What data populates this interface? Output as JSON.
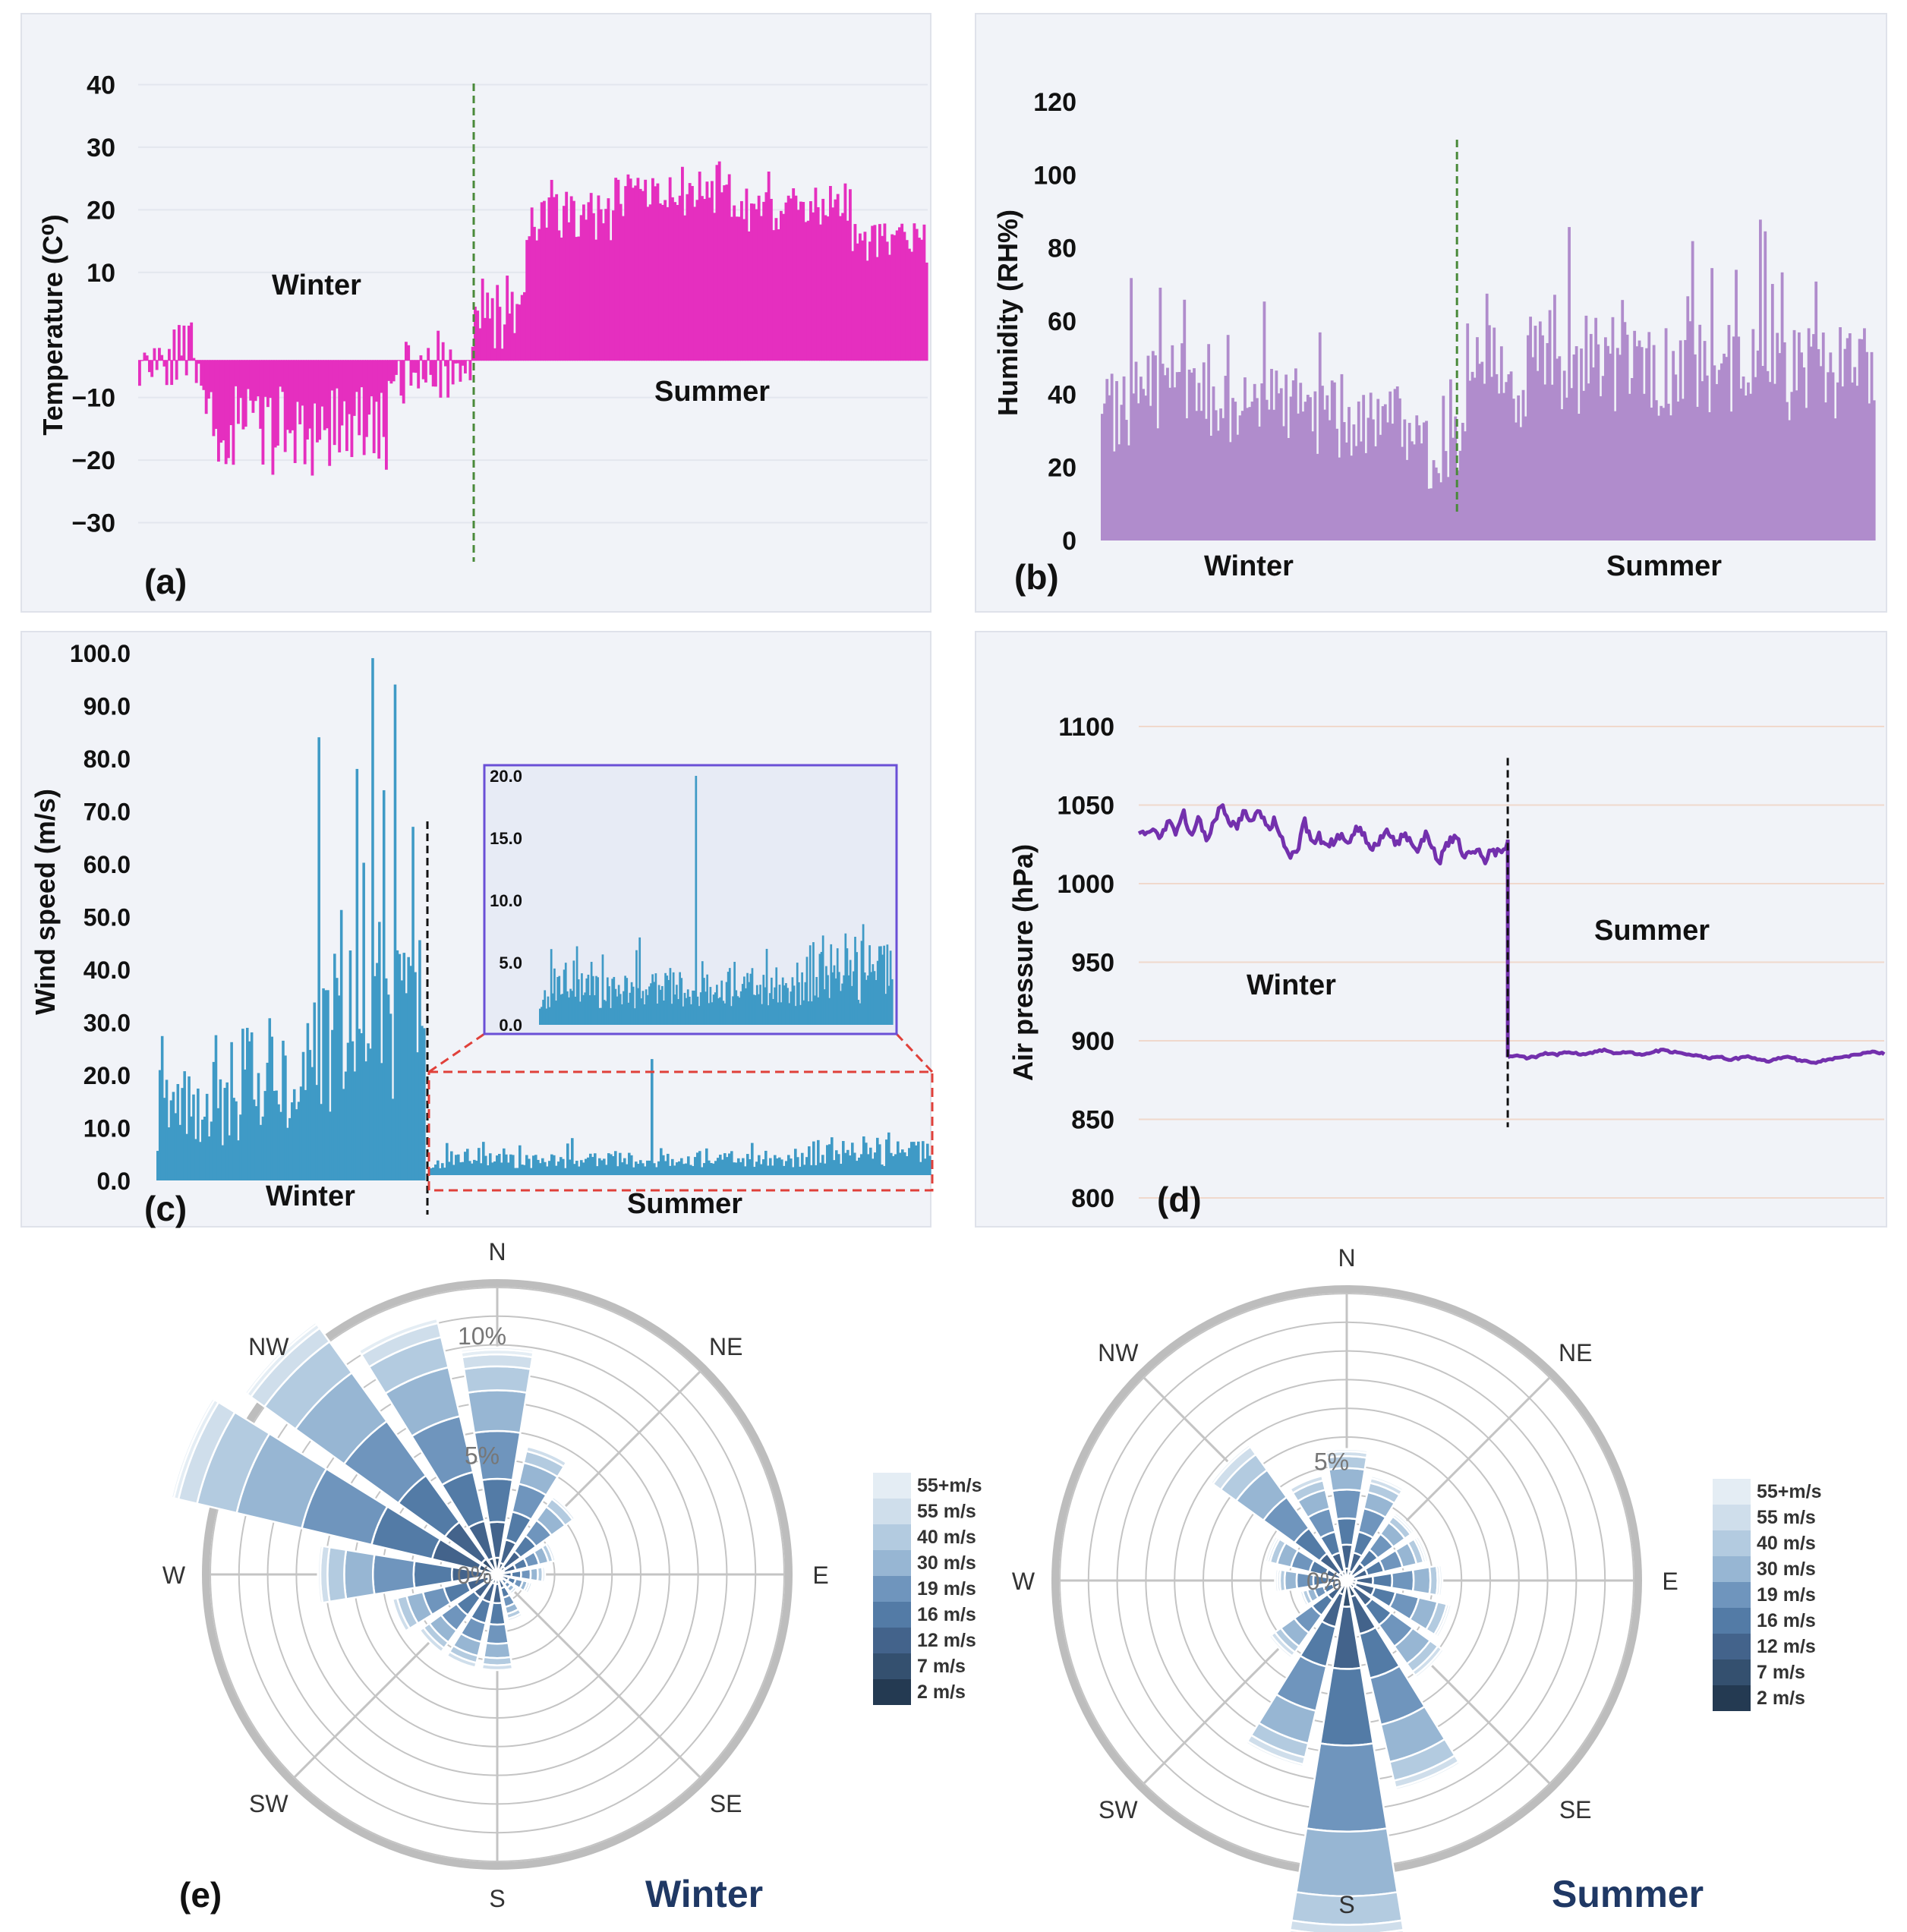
{
  "colors": {
    "panel_bg": "#f1f3f8",
    "panel_border": "#dfe2ea",
    "temperature": "#e52fbf",
    "humidity": "#b08ccc",
    "wind": "#3f9ac6",
    "pressure": "#7330ad",
    "divider_green": "#4a8a3a",
    "divider_black": "#111111",
    "inset_border": "#6a4fd6",
    "zoom_red": "#e0403a",
    "rose_grid": "#c4c4c4",
    "title_navy": "#1f3864",
    "legend": [
      "#e4edf4",
      "#cfdeeb",
      "#b3cbe0",
      "#97b6d3",
      "#6f95bd",
      "#537ba6",
      "#43638b",
      "#34506f",
      "#243a52"
    ]
  },
  "chart_data": [
    {
      "id": "a",
      "type": "bar",
      "panel_label": "(a)",
      "ylabel": "Temperature (C⁰)",
      "yticks": [
        "40",
        "30",
        "20",
        "10",
        "−10",
        "−20",
        "−30"
      ],
      "ytick_values": [
        40,
        30,
        20,
        10,
        -10,
        -20,
        -30
      ],
      "ylim": [
        -32,
        42
      ],
      "season_labels": [
        "Winter",
        "Summer"
      ],
      "segments": [
        {
          "from": 0.0,
          "to": 0.08,
          "base": -3,
          "amp": 10,
          "spike": 6
        },
        {
          "from": 0.08,
          "to": 0.22,
          "base": -15,
          "amp": 14,
          "spike": 7
        },
        {
          "from": 0.22,
          "to": 0.32,
          "base": -14,
          "amp": 14,
          "spike": 6
        },
        {
          "from": 0.32,
          "to": 0.42,
          "base": -6,
          "amp": 10,
          "spike": 6
        },
        {
          "from": 0.42,
          "to": 0.49,
          "base": 3,
          "amp": 12,
          "spike": 5
        },
        {
          "from": 0.49,
          "to": 0.6,
          "base": 19,
          "amp": 8,
          "spike": 6
        },
        {
          "from": 0.6,
          "to": 0.75,
          "base": 22,
          "amp": 7,
          "spike": 9
        },
        {
          "from": 0.75,
          "to": 0.9,
          "base": 20,
          "amp": 7,
          "spike": 6
        },
        {
          "from": 0.9,
          "to": 1.0,
          "base": 15,
          "amp": 8,
          "spike": 5
        }
      ],
      "n_bars": 320,
      "divider_at": 0.425
    },
    {
      "id": "b",
      "type": "bar",
      "panel_label": "(b)",
      "ylabel": "Humidity (RH%)",
      "yticks": [
        "120",
        "100",
        "80",
        "60",
        "40",
        "20",
        "0"
      ],
      "ytick_values": [
        120,
        100,
        80,
        60,
        40,
        20,
        0
      ],
      "ylim": [
        0,
        125
      ],
      "season_labels": [
        "Winter",
        "Summer"
      ],
      "segments": [
        {
          "from": 0.0,
          "to": 0.1,
          "base": 30,
          "amp": 30,
          "spike": 18
        },
        {
          "from": 0.1,
          "to": 0.25,
          "base": 32,
          "amp": 22,
          "spike": 14
        },
        {
          "from": 0.25,
          "to": 0.4,
          "base": 28,
          "amp": 22,
          "spike": 12
        },
        {
          "from": 0.4,
          "to": 0.47,
          "base": 20,
          "amp": 20,
          "spike": 10
        },
        {
          "from": 0.47,
          "to": 0.6,
          "base": 40,
          "amp": 30,
          "spike": 20
        },
        {
          "from": 0.6,
          "to": 0.8,
          "base": 42,
          "amp": 28,
          "spike": 18
        },
        {
          "from": 0.8,
          "to": 1.0,
          "base": 40,
          "amp": 28,
          "spike": 20
        }
      ],
      "n_bars": 320,
      "divider_at": 0.46
    },
    {
      "id": "c",
      "type": "bar",
      "panel_label": "(c)",
      "ylabel": "Wind speed (m/s)",
      "yticks": [
        "100.0",
        "90.0",
        "80.0",
        "70.0",
        "60.0",
        "50.0",
        "40.0",
        "30.0",
        "20.0",
        "10.0",
        "0.0"
      ],
      "ytick_values": [
        100,
        90,
        80,
        70,
        60,
        50,
        40,
        30,
        20,
        10,
        0
      ],
      "ylim": [
        0,
        100
      ],
      "season_labels": [
        "Winter",
        "Summer"
      ],
      "winter_segments": [
        {
          "from": 0.0,
          "to": 0.3,
          "base": 12,
          "amp": 16,
          "spike": 14
        },
        {
          "from": 0.3,
          "to": 0.55,
          "base": 16,
          "amp": 22,
          "spike": 16
        },
        {
          "from": 0.55,
          "to": 0.8,
          "base": 25,
          "amp": 30,
          "spike": 25
        },
        {
          "from": 0.8,
          "to": 1.0,
          "base": 28,
          "amp": 35,
          "spike": 30
        }
      ],
      "winter_peaks": [
        {
          "at": 0.6,
          "v": 84
        },
        {
          "at": 0.8,
          "v": 99
        },
        {
          "at": 0.88,
          "v": 94
        },
        {
          "at": 0.74,
          "v": 78
        }
      ],
      "summer_segments": [
        {
          "from": 0.0,
          "to": 0.45,
          "base": 2.5,
          "amp": 3,
          "spike": 4
        },
        {
          "from": 0.45,
          "to": 0.75,
          "base": 2.5,
          "amp": 3,
          "spike": 3
        },
        {
          "from": 0.75,
          "to": 1.0,
          "base": 3.5,
          "amp": 5,
          "spike": 4
        }
      ],
      "summer_peak": {
        "at": 0.44,
        "v": 22
      },
      "inset": {
        "yticks": [
          "20.0",
          "15.0",
          "10.0",
          "5.0",
          "0.0"
        ],
        "ytick_values": [
          20,
          15,
          10,
          5,
          0
        ],
        "ylim": [
          0,
          20
        ]
      },
      "n_winter": 120,
      "n_summer": 220
    },
    {
      "id": "d",
      "type": "line",
      "panel_label": "(d)",
      "ylabel": "Air pressure (hPa)",
      "yticks": [
        "1100",
        "1050",
        "1000",
        "950",
        "900",
        "850",
        "800"
      ],
      "ytick_values": [
        1100,
        1050,
        1000,
        950,
        900,
        850,
        800
      ],
      "ylim": [
        800,
        1100
      ],
      "season_labels": [
        "Winter",
        "Summer"
      ],
      "winter_series": [
        1035,
        1030,
        1037,
        1028,
        1040,
        1032,
        1045,
        1030,
        1042,
        1028,
        1038,
        1050,
        1040,
        1035,
        1045,
        1038,
        1048,
        1035,
        1040,
        1030,
        1015,
        1020,
        1040,
        1025,
        1030,
        1022,
        1028,
        1032,
        1025,
        1035,
        1030,
        1022,
        1028,
        1035,
        1025,
        1030,
        1028,
        1020,
        1032,
        1022,
        1015,
        1025,
        1030,
        1020,
        1018,
        1025,
        1015,
        1022,
        1018,
        1025
      ],
      "summer_series": [
        890,
        891,
        889,
        890,
        892,
        891,
        893,
        892,
        891,
        893,
        894,
        892,
        893,
        892,
        891,
        893,
        894,
        893,
        892,
        891,
        890,
        889,
        890,
        888,
        889,
        890,
        888,
        887,
        889,
        890,
        888,
        887,
        886,
        888,
        889,
        890,
        891,
        892,
        893,
        892
      ],
      "divider_at": 0.495
    },
    {
      "id": "e-winter",
      "type": "wind-rose",
      "panel_label": "(e)",
      "title": "Winter",
      "directions": [
        "N",
        "NE",
        "E",
        "SE",
        "S",
        "SW",
        "W",
        "NW"
      ],
      "ring_labels": [
        "0%",
        "5%",
        "10%"
      ],
      "sectors_pct": [
        9.5,
        5.5,
        4.0,
        2.5,
        2.0,
        1.5,
        1.0,
        2.0,
        4.0,
        4.0,
        4.0,
        4.5,
        7.5,
        14.0,
        13.0,
        11.0
      ],
      "sector_bins": [
        [
          0.7,
          1.5,
          1.8,
          2.0,
          1.7,
          1.0,
          0.5,
          0.2,
          0.1
        ],
        [
          0.5,
          1.0,
          1.2,
          1.2,
          0.9,
          0.5,
          0.2,
          0,
          0
        ],
        [
          0.4,
          0.8,
          0.8,
          0.8,
          0.7,
          0.4,
          0.1,
          0,
          0
        ],
        [
          0.3,
          0.5,
          0.5,
          0.5,
          0.4,
          0.2,
          0.1,
          0,
          0
        ],
        [
          0.2,
          0.4,
          0.4,
          0.4,
          0.3,
          0.2,
          0.1,
          0,
          0
        ],
        [
          0.2,
          0.3,
          0.3,
          0.3,
          0.2,
          0.1,
          0.1,
          0,
          0
        ],
        [
          0.1,
          0.2,
          0.2,
          0.2,
          0.2,
          0.1,
          0,
          0,
          0
        ],
        [
          0.2,
          0.4,
          0.4,
          0.4,
          0.3,
          0.2,
          0.1,
          0,
          0
        ],
        [
          0.4,
          0.8,
          0.9,
          0.8,
          0.6,
          0.3,
          0.2,
          0,
          0
        ],
        [
          0.4,
          0.8,
          0.9,
          0.8,
          0.6,
          0.3,
          0.2,
          0,
          0
        ],
        [
          0.4,
          0.8,
          0.9,
          0.8,
          0.6,
          0.3,
          0.2,
          0,
          0
        ],
        [
          0.4,
          0.9,
          1.0,
          0.9,
          0.7,
          0.4,
          0.2,
          0,
          0
        ],
        [
          0.6,
          1.3,
          1.6,
          1.7,
          1.2,
          0.7,
          0.3,
          0.1,
          0
        ],
        [
          0.8,
          2.0,
          2.6,
          3.0,
          2.8,
          1.7,
          0.8,
          0.2,
          0.1
        ],
        [
          0.8,
          1.9,
          2.4,
          2.8,
          2.5,
          1.6,
          0.7,
          0.2,
          0.1
        ],
        [
          0.7,
          1.6,
          2.1,
          2.4,
          2.1,
          1.3,
          0.6,
          0.2,
          0
        ]
      ]
    },
    {
      "id": "e-summer",
      "type": "wind-rose",
      "title": "Summer",
      "directions": [
        "N",
        "NE",
        "E",
        "SE",
        "S",
        "SW",
        "W",
        "NW"
      ],
      "ring_labels": [
        "0%",
        "5%"
      ],
      "sectors_pct": [
        5.5,
        4.5,
        3.5,
        3.5,
        4.0,
        4.5,
        5.0,
        9.0,
        15.0,
        8.0,
        4.0,
        2.0,
        3.0,
        3.5,
        7.0,
        4.5
      ],
      "sector_bins": [
        [
          0.5,
          1.0,
          1.1,
          1.2,
          0.9,
          0.5,
          0.2,
          0.1,
          0
        ],
        [
          0.4,
          0.8,
          0.9,
          1.0,
          0.7,
          0.4,
          0.2,
          0.1,
          0
        ],
        [
          0.3,
          0.6,
          0.7,
          0.8,
          0.6,
          0.3,
          0.1,
          0.1,
          0
        ],
        [
          0.3,
          0.6,
          0.7,
          0.8,
          0.6,
          0.3,
          0.1,
          0.1,
          0
        ],
        [
          0.4,
          0.7,
          0.8,
          0.9,
          0.7,
          0.3,
          0.1,
          0.1,
          0
        ],
        [
          0.4,
          0.8,
          0.9,
          1.0,
          0.8,
          0.4,
          0.1,
          0.1,
          0
        ],
        [
          0.4,
          0.9,
          1.0,
          1.1,
          0.9,
          0.4,
          0.2,
          0.1,
          0
        ],
        [
          0.7,
          1.6,
          1.9,
          2.0,
          1.6,
          0.8,
          0.3,
          0.1,
          0
        ],
        [
          1.1,
          2.6,
          3.2,
          3.6,
          2.7,
          1.2,
          0.4,
          0.2,
          0
        ],
        [
          0.6,
          1.4,
          1.7,
          1.9,
          1.4,
          0.6,
          0.3,
          0.1,
          0
        ],
        [
          0.3,
          0.7,
          0.8,
          0.9,
          0.7,
          0.3,
          0.2,
          0.1,
          0
        ],
        [
          0.2,
          0.4,
          0.4,
          0.4,
          0.3,
          0.2,
          0.1,
          0,
          0
        ],
        [
          0.3,
          0.5,
          0.6,
          0.7,
          0.5,
          0.2,
          0.1,
          0.1,
          0
        ],
        [
          0.3,
          0.6,
          0.7,
          0.8,
          0.6,
          0.3,
          0.1,
          0.1,
          0
        ],
        [
          0.4,
          1.0,
          1.3,
          1.6,
          1.4,
          0.8,
          0.4,
          0.1,
          0
        ],
        [
          0.4,
          0.8,
          0.9,
          1.0,
          0.8,
          0.4,
          0.2,
          0,
          0
        ]
      ]
    }
  ],
  "legend": {
    "labels": [
      "55+m/s",
      "55 m/s",
      "40 m/s",
      "30 m/s",
      "19 m/s",
      "16 m/s",
      "12 m/s",
      "7 m/s",
      "2 m/s"
    ]
  }
}
